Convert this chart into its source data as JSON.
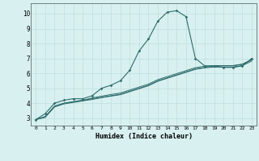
{
  "xlabel": "Humidex (Indice chaleur)",
  "ylabel": "",
  "background_color": "#d8f0f0",
  "grid_color": "#c0dede",
  "line_color": "#2e6b6b",
  "xlim": [
    -0.5,
    23.5
  ],
  "ylim": [
    2.5,
    10.7
  ],
  "xticks": [
    0,
    1,
    2,
    3,
    4,
    5,
    6,
    7,
    8,
    9,
    10,
    11,
    12,
    13,
    14,
    15,
    16,
    17,
    18,
    19,
    20,
    21,
    22,
    23
  ],
  "yticks": [
    3,
    4,
    5,
    6,
    7,
    8,
    9,
    10
  ],
  "series1_x": [
    0,
    1,
    2,
    3,
    4,
    5,
    6,
    7,
    8,
    9,
    10,
    11,
    12,
    13,
    14,
    15,
    16,
    17,
    18,
    19,
    20,
    21,
    22,
    23
  ],
  "series1_y": [
    2.9,
    3.3,
    4.0,
    4.2,
    4.3,
    4.3,
    4.5,
    5.0,
    5.2,
    5.5,
    6.2,
    7.5,
    8.3,
    9.5,
    10.1,
    10.2,
    9.8,
    7.0,
    6.5,
    6.5,
    6.4,
    6.4,
    6.5,
    7.0
  ],
  "series2_x": [
    0,
    1,
    2,
    3,
    4,
    5,
    6,
    7,
    8,
    9,
    10,
    11,
    12,
    13,
    14,
    15,
    16,
    17,
    18,
    19,
    20,
    21,
    22,
    23
  ],
  "series2_y": [
    2.9,
    3.1,
    3.8,
    4.0,
    4.1,
    4.2,
    4.3,
    4.4,
    4.5,
    4.6,
    4.8,
    5.0,
    5.2,
    5.5,
    5.7,
    5.9,
    6.1,
    6.3,
    6.4,
    6.5,
    6.5,
    6.5,
    6.6,
    6.9
  ],
  "series3_x": [
    0,
    1,
    2,
    3,
    4,
    5,
    6,
    7,
    8,
    9,
    10,
    11,
    12,
    13,
    14,
    15,
    16,
    17,
    18,
    19,
    20,
    21,
    22,
    23
  ],
  "series3_y": [
    2.9,
    3.1,
    3.8,
    4.0,
    4.1,
    4.2,
    4.35,
    4.47,
    4.58,
    4.68,
    4.88,
    5.08,
    5.28,
    5.58,
    5.78,
    5.98,
    6.18,
    6.38,
    6.48,
    6.52,
    6.52,
    6.52,
    6.62,
    6.92
  ],
  "series4_x": [
    0,
    1,
    2,
    3,
    4,
    5,
    6,
    7,
    8,
    9,
    10,
    11,
    12,
    13,
    14,
    15,
    16,
    17,
    18,
    19,
    20,
    21,
    22,
    23
  ],
  "series4_y": [
    2.9,
    3.05,
    3.75,
    3.95,
    4.05,
    4.15,
    4.25,
    4.37,
    4.47,
    4.57,
    4.77,
    4.97,
    5.17,
    5.47,
    5.67,
    5.87,
    6.07,
    6.27,
    6.37,
    6.42,
    6.42,
    6.42,
    6.52,
    6.82
  ]
}
